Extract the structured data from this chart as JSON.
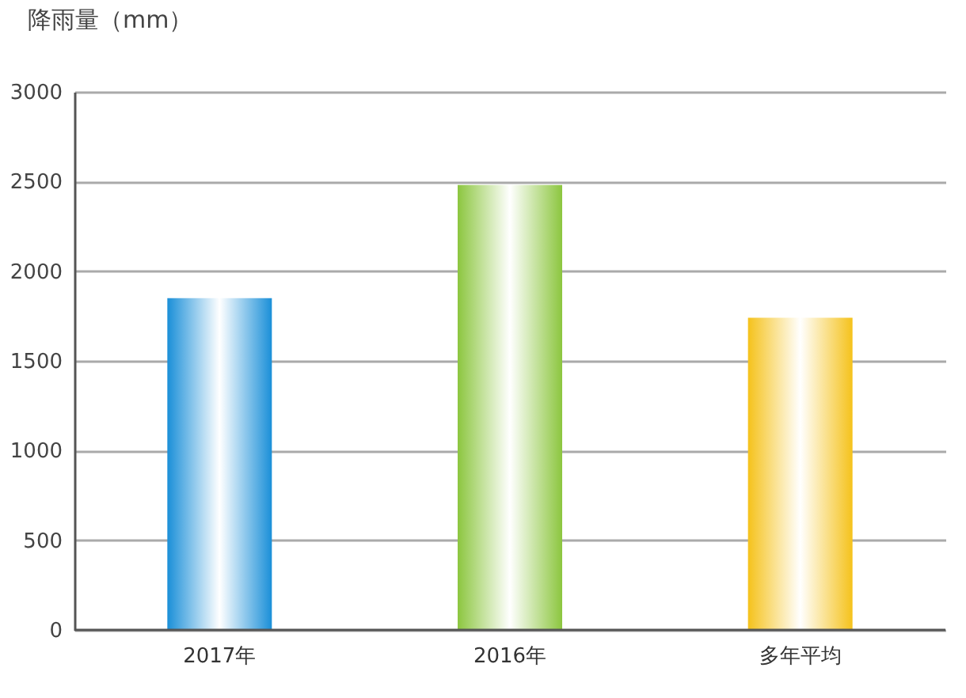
{
  "chart_data": {
    "type": "bar",
    "ylabel": "降雨量（mm）",
    "categories": [
      "2017年",
      "2016年",
      "多年平均"
    ],
    "values": [
      1850,
      2480,
      1740
    ],
    "colors": [
      "#1a8fd8",
      "#8cc63f",
      "#f5c21b"
    ],
    "ylim": [
      0,
      3000
    ],
    "yticks": [
      0,
      500,
      1000,
      1500,
      2000,
      2500,
      3000
    ],
    "grid": "y"
  }
}
